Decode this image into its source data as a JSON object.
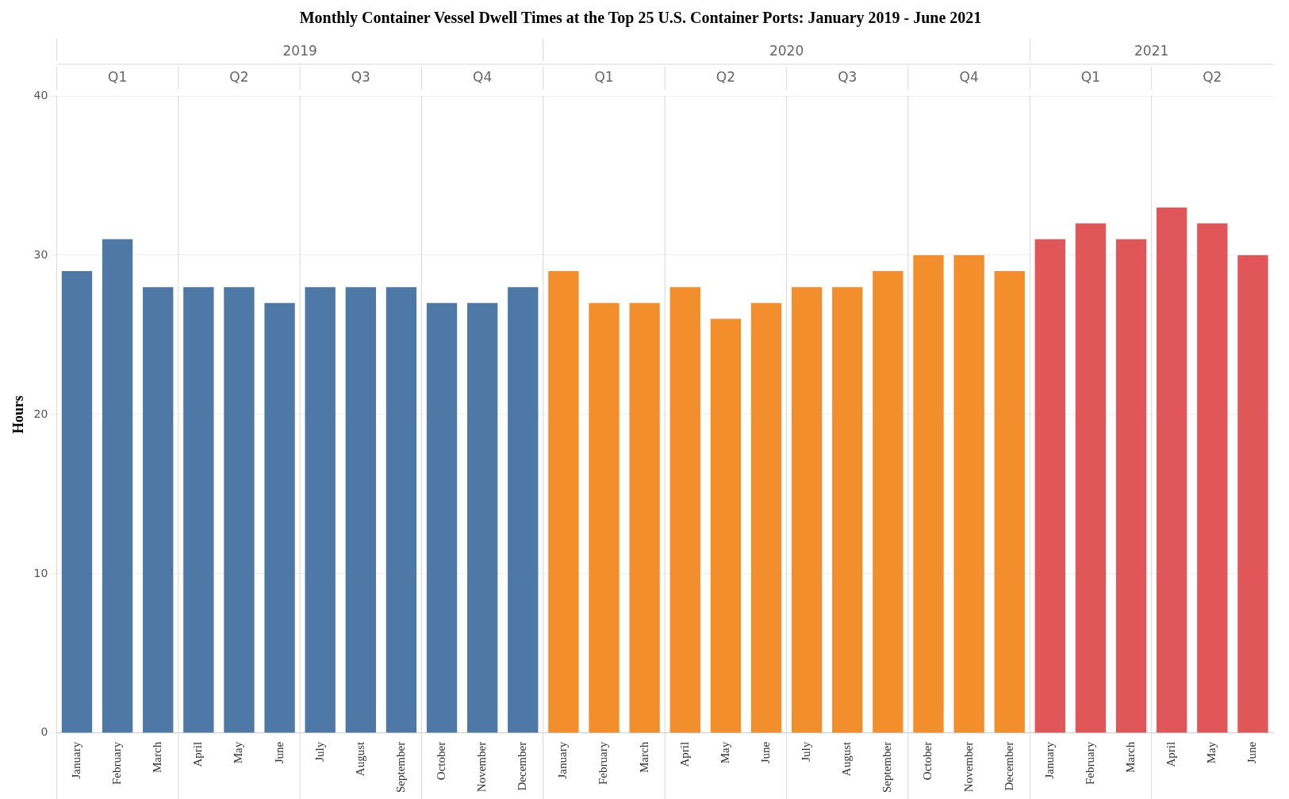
{
  "chart_data": {
    "type": "bar",
    "title": "Monthly Container Vessel Dwell Times at the Top 25 U.S. Container Ports: January 2019 - June 2021",
    "ylabel": "Hours",
    "categories": [
      "January",
      "February",
      "March",
      "April",
      "May",
      "June",
      "July",
      "August",
      "September",
      "October",
      "November",
      "December",
      "January",
      "February",
      "March",
      "April",
      "May",
      "June",
      "July",
      "August",
      "September",
      "October",
      "November",
      "December",
      "January",
      "February",
      "March",
      "April",
      "May",
      "June"
    ],
    "values": [
      29,
      31,
      28,
      28,
      28,
      27,
      28,
      28,
      28,
      27,
      27,
      28,
      29,
      27,
      27,
      28,
      26,
      27,
      28,
      28,
      29,
      30,
      30,
      29,
      31,
      32,
      31,
      33,
      32,
      30
    ],
    "colors": [
      "#4e79a7",
      "#4e79a7",
      "#4e79a7",
      "#4e79a7",
      "#4e79a7",
      "#4e79a7",
      "#4e79a7",
      "#4e79a7",
      "#4e79a7",
      "#4e79a7",
      "#4e79a7",
      "#4e79a7",
      "#f28e2b",
      "#f28e2b",
      "#f28e2b",
      "#f28e2b",
      "#f28e2b",
      "#f28e2b",
      "#f28e2b",
      "#f28e2b",
      "#f28e2b",
      "#f28e2b",
      "#f28e2b",
      "#f28e2b",
      "#e15759",
      "#e15759",
      "#e15759",
      "#e15759",
      "#e15759",
      "#e15759"
    ],
    "annotations": [
      "2019",
      "2020",
      "2021",
      "Q1",
      "Q2",
      "Q3",
      "Q4",
      "Q1",
      "Q2",
      "Q3",
      "Q4",
      "Q1",
      "Q2"
    ],
    "ylim": [
      0,
      40
    ],
    "yticks": [
      0,
      10,
      20,
      30,
      40
    ],
    "grid": "y",
    "legend": false
  }
}
